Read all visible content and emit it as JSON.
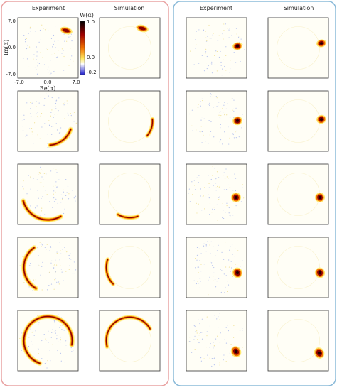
{
  "left_group": {
    "headers": [
      "Experiment",
      "Simulation"
    ]
  },
  "right_group": {
    "headers": [
      "Experiment",
      "Simulation"
    ]
  },
  "colorbar": {
    "label": "W(α)",
    "ticks": [
      "1.0",
      "0.0",
      "-0.2"
    ]
  },
  "axes": {
    "y_label": "Im(α)",
    "x_label": "Re(α)",
    "y_ticks": [
      "7.0",
      "0.0",
      "-7.0"
    ],
    "x_ticks": [
      "-7.0",
      "0.0",
      "7.0"
    ]
  }
}
